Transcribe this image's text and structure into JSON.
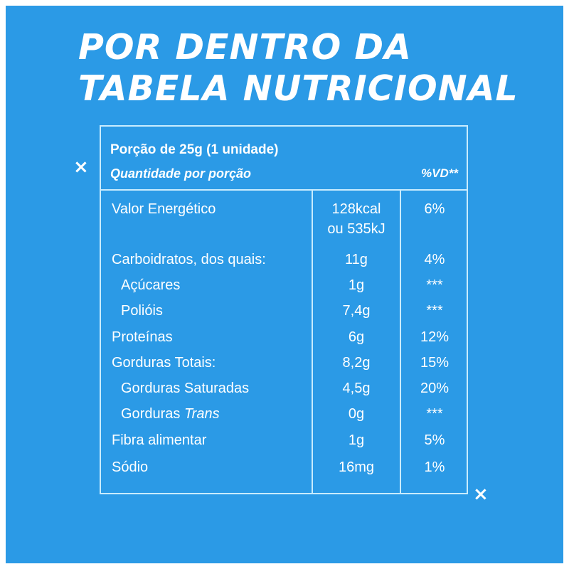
{
  "title": {
    "line1": "POR DENTRO DA",
    "line2": "TABELA NUTRICIONAL"
  },
  "decorations": {
    "x_mark": "×"
  },
  "table": {
    "portion": "Porção de 25g  (1 unidade)",
    "quantity_label": "Quantidade por porção",
    "vd_label": "%VD**",
    "rows": [
      {
        "name": "Valor Energético",
        "amount": "128kcal",
        "amount_line2": "ou 535kJ",
        "vd": "6%"
      },
      {
        "name": "Carboidratos, dos quais:",
        "amount": "11g",
        "vd": "4%"
      },
      {
        "name": "Açúcares",
        "amount": "1g",
        "vd": "***"
      },
      {
        "name": "Polióis",
        "amount": "7,4g",
        "vd": "***"
      },
      {
        "name": "Proteínas",
        "amount": "6g",
        "vd": "12%"
      },
      {
        "name": "Gorduras Totais:",
        "amount": "8,2g",
        "vd": "15%"
      },
      {
        "name": "Gorduras Saturadas",
        "amount": "4,5g",
        "vd": "20%"
      },
      {
        "name_prefix": "Gorduras ",
        "name_italic": "Trans",
        "amount": "0g",
        "vd": "***"
      },
      {
        "name": "Fibra alimentar",
        "amount": "1g",
        "vd": "5%"
      },
      {
        "name": "Sódio",
        "amount": "16mg",
        "vd": "1%"
      }
    ]
  },
  "colors": {
    "background": "#2b9ae6",
    "text": "#ffffff",
    "border": "#c9ecff"
  }
}
